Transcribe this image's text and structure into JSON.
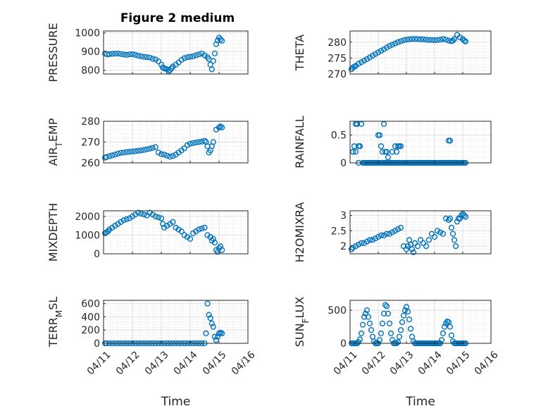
{
  "figure_title": "Figure 2 medium",
  "colors": {
    "marker": "#0072BD",
    "axis": "#262626",
    "grid": "#d9d9d9",
    "background": "#ffffff"
  },
  "chart_data": [
    {
      "type": "scatter",
      "ylabel": {
        "text": "PRESSURE",
        "sub": ""
      },
      "xlabel": "",
      "ylim": [
        780,
        1010
      ],
      "yticks": [
        800,
        900,
        1000
      ],
      "xlim": [
        0,
        5
      ],
      "xticklabels": [
        "04/11",
        "04/12",
        "04/13",
        "04/14",
        "04/15",
        "04/16"
      ],
      "show_xticklabels": false,
      "grid": true,
      "x": [
        0.05,
        0.12,
        0.2,
        0.3,
        0.4,
        0.5,
        0.6,
        0.7,
        0.8,
        0.9,
        1.0,
        1.1,
        1.2,
        1.3,
        1.4,
        1.5,
        1.6,
        1.7,
        1.8,
        1.9,
        2.0,
        2.05,
        2.1,
        2.15,
        2.2,
        2.25,
        2.3,
        2.35,
        2.4,
        2.5,
        2.6,
        2.7,
        2.8,
        2.9,
        3.0,
        3.1,
        3.2,
        3.3,
        3.4,
        3.5,
        3.6,
        3.65,
        3.7,
        3.75,
        3.8,
        3.85,
        3.9,
        3.95,
        4.0,
        4.05,
        4.1
      ],
      "y": [
        890,
        885,
        886,
        888,
        889,
        890,
        887,
        884,
        882,
        885,
        886,
        882,
        878,
        875,
        872,
        870,
        868,
        862,
        858,
        848,
        830,
        815,
        810,
        808,
        805,
        795,
        800,
        810,
        820,
        830,
        842,
        856,
        865,
        870,
        872,
        875,
        880,
        885,
        890,
        880,
        870,
        860,
        830,
        805,
        850,
        890,
        940,
        960,
        975,
        965,
        958
      ]
    },
    {
      "type": "scatter",
      "ylabel": {
        "text": "THETA",
        "sub": ""
      },
      "xlabel": "",
      "ylim": [
        270,
        283.5
      ],
      "yticks": [
        270,
        275,
        280
      ],
      "xlim": [
        0,
        5
      ],
      "xticklabels": [
        "04/11",
        "04/12",
        "04/13",
        "04/14",
        "04/15",
        "04/16"
      ],
      "show_xticklabels": false,
      "grid": true,
      "x": [
        0.05,
        0.1,
        0.15,
        0.2,
        0.3,
        0.4,
        0.5,
        0.6,
        0.7,
        0.8,
        0.9,
        1.0,
        1.1,
        1.2,
        1.3,
        1.4,
        1.5,
        1.6,
        1.7,
        1.8,
        1.9,
        2.0,
        2.1,
        2.2,
        2.3,
        2.4,
        2.5,
        2.6,
        2.7,
        2.8,
        2.9,
        3.0,
        3.1,
        3.2,
        3.3,
        3.4,
        3.5,
        3.6,
        3.65,
        3.7,
        3.8,
        3.9,
        4.0,
        4.05,
        4.1
      ],
      "y": [
        271.5,
        272,
        272.3,
        272.6,
        273.2,
        273.7,
        274.2,
        274.7,
        275.2,
        275.8,
        276.3,
        276.8,
        277.3,
        277.8,
        278.3,
        278.8,
        279.2,
        279.6,
        280,
        280.3,
        280.6,
        280.8,
        280.9,
        281,
        281,
        281,
        280.9,
        280.9,
        280.8,
        280.7,
        280.7,
        280.6,
        280.7,
        280.8,
        281,
        280.8,
        280.5,
        280.3,
        280.5,
        281,
        282.3,
        281.5,
        281,
        280.5,
        280.2
      ]
    },
    {
      "type": "scatter",
      "ylabel": {
        "text": "AIR",
        "sub": "T",
        "after": "EMP"
      },
      "xlabel": "",
      "ylim": [
        260,
        280
      ],
      "yticks": [
        260,
        270,
        280
      ],
      "xlim": [
        0,
        5
      ],
      "xticklabels": [
        "04/11",
        "04/12",
        "04/13",
        "04/14",
        "04/15",
        "04/16"
      ],
      "show_xticklabels": false,
      "grid": true,
      "x": [
        0.05,
        0.1,
        0.2,
        0.3,
        0.4,
        0.5,
        0.6,
        0.7,
        0.8,
        0.9,
        1.0,
        1.1,
        1.2,
        1.3,
        1.4,
        1.5,
        1.6,
        1.7,
        1.8,
        1.9,
        2.0,
        2.1,
        2.2,
        2.3,
        2.4,
        2.5,
        2.6,
        2.7,
        2.8,
        2.9,
        3.0,
        3.1,
        3.2,
        3.3,
        3.4,
        3.5,
        3.55,
        3.6,
        3.65,
        3.7,
        3.75,
        3.8,
        3.9,
        4.0,
        4.05,
        4.1
      ],
      "y": [
        262.5,
        262.8,
        263.2,
        263.6,
        264,
        264.4,
        264.8,
        265,
        265.2,
        265.3,
        265.5,
        265.6,
        265.8,
        266,
        266.2,
        266.5,
        266.8,
        267.2,
        267.6,
        265,
        264.2,
        264,
        263.5,
        263,
        263.3,
        264,
        265,
        266,
        267,
        268.5,
        269.2,
        269.5,
        269.8,
        270,
        270.2,
        270.6,
        270,
        268,
        265,
        266,
        268,
        270,
        276,
        277,
        277.5,
        277
      ]
    },
    {
      "type": "scatter",
      "ylabel": {
        "text": "RAINFALL",
        "sub": ""
      },
      "xlabel": "",
      "ylim": [
        0,
        0.75
      ],
      "yticks": [
        0,
        0.5
      ],
      "xlim": [
        0,
        5
      ],
      "xticklabels": [
        "04/11",
        "04/12",
        "04/13",
        "04/14",
        "04/15",
        "04/16"
      ],
      "show_xticklabels": false,
      "grid": true,
      "x": [
        0.1,
        0.15,
        0.2,
        0.25,
        0.3,
        0.35,
        0.4,
        0.45,
        0.5,
        0.55,
        0.6,
        0.65,
        0.7,
        0.75,
        0.8,
        0.85,
        0.9,
        0.95,
        1.0,
        1.05,
        1.1,
        1.15,
        1.2,
        1.25,
        1.3,
        1.35,
        1.4,
        1.45,
        1.5,
        1.55,
        1.6,
        1.65,
        1.7,
        1.75,
        1.8,
        1.85,
        1.9,
        1.95,
        2.0,
        2.05,
        2.1,
        2.15,
        2.2,
        2.25,
        2.3,
        2.35,
        2.4,
        2.45,
        2.5,
        2.55,
        2.6,
        2.65,
        2.7,
        2.75,
        2.8,
        2.85,
        2.9,
        2.95,
        3.0,
        3.05,
        3.1,
        3.15,
        3.2,
        3.25,
        3.3,
        3.35,
        3.4,
        3.45,
        3.5,
        3.55,
        3.6,
        3.65,
        3.7,
        3.75,
        3.8,
        3.85,
        3.9,
        3.95,
        4.0,
        4.05,
        4.1,
        0.1,
        0.2,
        0.25,
        0.3,
        0.35,
        0.5,
        1.0,
        1.05,
        1.1,
        1.15,
        1.2,
        1.25,
        1.3,
        1.35,
        1.4,
        1.5,
        1.6,
        1.65,
        1.7,
        1.75,
        1.8,
        3.5,
        3.55
      ],
      "y": [
        0.2,
        0.3,
        0.7,
        0.7,
        0,
        0.3,
        0.7,
        0,
        0,
        0,
        0,
        0,
        0,
        0,
        0,
        0,
        0,
        0,
        0,
        0,
        0,
        0,
        0,
        0,
        0,
        0,
        0,
        0,
        0,
        0,
        0,
        0,
        0,
        0,
        0,
        0,
        0,
        0,
        0,
        0,
        0,
        0,
        0,
        0,
        0,
        0,
        0,
        0,
        0,
        0,
        0,
        0,
        0,
        0,
        0,
        0,
        0,
        0,
        0,
        0,
        0,
        0,
        0,
        0,
        0,
        0,
        0,
        0,
        0,
        0,
        0,
        0,
        0,
        0,
        0,
        0,
        0,
        0,
        0,
        0,
        0,
        0.2,
        0.2,
        0.7,
        0.3,
        0.3,
        0,
        0.5,
        0.5,
        0.3,
        0.2,
        0.7,
        0.2,
        0.2,
        0.1,
        0,
        0.2,
        0.3,
        0.2,
        0.3,
        0.3,
        0.3,
        0.4,
        0.4
      ]
    },
    {
      "type": "scatter",
      "ylabel": {
        "text": "MIXDEPTH",
        "sub": ""
      },
      "xlabel": "",
      "ylim": [
        0,
        2300
      ],
      "yticks": [
        0,
        1000,
        2000
      ],
      "xlim": [
        0,
        5
      ],
      "xticklabels": [
        "04/11",
        "04/12",
        "04/13",
        "04/14",
        "04/15",
        "04/16"
      ],
      "show_xticklabels": false,
      "grid": true,
      "x": [
        0.05,
        0.1,
        0.15,
        0.2,
        0.3,
        0.4,
        0.5,
        0.6,
        0.7,
        0.8,
        0.9,
        1.0,
        1.1,
        1.2,
        1.3,
        1.4,
        1.5,
        1.6,
        1.7,
        1.8,
        1.9,
        2.0,
        2.05,
        2.1,
        2.2,
        2.3,
        2.4,
        2.5,
        2.6,
        2.7,
        2.8,
        2.9,
        3.0,
        3.1,
        3.2,
        3.3,
        3.4,
        3.5,
        3.6,
        3.7,
        3.75,
        3.8,
        3.85,
        3.9,
        3.95,
        4.0,
        4.05,
        4.1
      ],
      "y": [
        1100,
        1150,
        1200,
        1300,
        1400,
        1500,
        1600,
        1700,
        1800,
        1850,
        1900,
        2000,
        2100,
        2200,
        2150,
        2100,
        2050,
        2200,
        2100,
        2000,
        1950,
        1900,
        1600,
        1400,
        1500,
        1600,
        1700,
        1400,
        1300,
        1200,
        1000,
        900,
        800,
        1100,
        1200,
        1300,
        1350,
        1400,
        1000,
        900,
        700,
        800,
        600,
        200,
        100,
        300,
        400,
        200
      ]
    },
    {
      "type": "scatter",
      "ylabel": {
        "text": "H2OMIXRA",
        "sub": ""
      },
      "xlabel": "",
      "ylim": [
        1.75,
        3.15
      ],
      "yticks": [
        2,
        2.5,
        3
      ],
      "xlim": [
        0,
        5
      ],
      "xticklabels": [
        "04/11",
        "04/12",
        "04/13",
        "04/14",
        "04/15",
        "04/16"
      ],
      "show_xticklabels": false,
      "grid": true,
      "x": [
        0.05,
        0.1,
        0.2,
        0.3,
        0.4,
        0.5,
        0.6,
        0.7,
        0.8,
        0.9,
        1.0,
        1.1,
        1.2,
        1.3,
        1.4,
        1.5,
        1.6,
        1.7,
        1.8,
        1.9,
        2.0,
        2.05,
        2.1,
        2.15,
        2.2,
        2.25,
        2.3,
        2.4,
        2.5,
        2.6,
        2.7,
        2.8,
        2.9,
        3.0,
        3.1,
        3.2,
        3.3,
        3.4,
        3.5,
        3.55,
        3.6,
        3.65,
        3.7,
        3.75,
        3.8,
        3.85,
        3.9,
        3.95,
        4.0,
        4.05,
        4.1
      ],
      "y": [
        1.9,
        1.95,
        2.0,
        2.05,
        2.1,
        2.1,
        2.15,
        2.2,
        2.2,
        2.25,
        2.3,
        2.35,
        2.35,
        2.4,
        2.4,
        2.45,
        2.5,
        2.55,
        2.6,
        2.0,
        1.9,
        2.0,
        2.2,
        2.05,
        1.9,
        1.8,
        2.1,
        2.0,
        2.2,
        2.1,
        2.0,
        2.2,
        2.4,
        2.3,
        2.5,
        2.45,
        2.4,
        2.9,
        2.85,
        2.9,
        2.6,
        2.4,
        2.2,
        2.0,
        2.8,
        2.9,
        2.9,
        3.0,
        3.05,
        3.0,
        2.95
      ]
    },
    {
      "type": "scatter",
      "ylabel": {
        "text": "TERR",
        "sub": "M",
        "after": "SL"
      },
      "xlabel": "Time",
      "ylim": [
        0,
        650
      ],
      "yticks": [
        0,
        200,
        400,
        600
      ],
      "xlim": [
        0,
        5
      ],
      "xticklabels": [
        "04/11",
        "04/12",
        "04/13",
        "04/14",
        "04/15",
        "04/16"
      ],
      "show_xticklabels": true,
      "grid": true,
      "x": [
        0.05,
        0.1,
        0.2,
        0.3,
        0.4,
        0.5,
        0.6,
        0.7,
        0.8,
        0.9,
        1.0,
        1.1,
        1.2,
        1.3,
        1.4,
        1.5,
        1.6,
        1.7,
        1.8,
        1.9,
        2.0,
        2.1,
        2.2,
        2.3,
        2.4,
        2.5,
        2.6,
        2.7,
        2.8,
        2.9,
        3.0,
        3.1,
        3.2,
        3.3,
        3.4,
        3.5,
        3.55,
        3.6,
        3.65,
        3.7,
        3.75,
        3.8,
        3.85,
        3.9,
        3.95,
        4.0,
        4.05,
        4.1
      ],
      "y": [
        0,
        0,
        0,
        0,
        0,
        0,
        0,
        0,
        0,
        0,
        0,
        0,
        0,
        0,
        0,
        0,
        0,
        0,
        0,
        0,
        0,
        0,
        0,
        0,
        0,
        0,
        0,
        0,
        0,
        0,
        0,
        0,
        0,
        0,
        0,
        0,
        150,
        600,
        430,
        380,
        300,
        250,
        100,
        50,
        100,
        150,
        160,
        150
      ]
    },
    {
      "type": "scatter",
      "ylabel": {
        "text": "SUN",
        "sub": "F",
        "after": "LUX"
      },
      "xlabel": "Time",
      "ylim": [
        0,
        650
      ],
      "yticks": [
        0,
        500
      ],
      "xlim": [
        0,
        5
      ],
      "xticklabels": [
        "04/11",
        "04/12",
        "04/13",
        "04/14",
        "04/15",
        "04/16"
      ],
      "show_xticklabels": true,
      "grid": true,
      "x": [
        0.05,
        0.1,
        0.15,
        0.2,
        0.25,
        0.3,
        0.35,
        0.4,
        0.45,
        0.5,
        0.55,
        0.6,
        0.65,
        0.7,
        0.75,
        0.8,
        0.85,
        0.9,
        0.95,
        1.0,
        1.05,
        1.1,
        1.15,
        1.2,
        1.25,
        1.3,
        1.35,
        1.4,
        1.45,
        1.5,
        1.55,
        1.6,
        1.65,
        1.7,
        1.75,
        1.8,
        1.85,
        1.9,
        1.95,
        2.0,
        2.05,
        2.1,
        2.15,
        2.2,
        2.25,
        2.3,
        2.35,
        2.4,
        2.45,
        2.5,
        2.55,
        2.6,
        2.65,
        2.7,
        2.75,
        2.8,
        2.85,
        2.9,
        2.95,
        3.0,
        3.05,
        3.1,
        3.15,
        3.2,
        3.25,
        3.3,
        3.35,
        3.4,
        3.45,
        3.5,
        3.55,
        3.6,
        3.65,
        3.7,
        3.75,
        3.8,
        3.85,
        3.9,
        3.95,
        4.0,
        4.05,
        4.1
      ],
      "y": [
        0,
        0,
        0,
        0,
        0,
        20,
        60,
        150,
        280,
        400,
        450,
        500,
        400,
        300,
        200,
        100,
        30,
        0,
        0,
        0,
        50,
        150,
        300,
        450,
        580,
        560,
        450,
        300,
        150,
        50,
        0,
        0,
        0,
        20,
        100,
        200,
        320,
        420,
        500,
        550,
        480,
        360,
        220,
        100,
        30,
        0,
        0,
        0,
        0,
        0,
        0,
        0,
        0,
        0,
        0,
        0,
        0,
        0,
        0,
        0,
        0,
        0,
        0,
        0,
        50,
        150,
        250,
        300,
        330,
        320,
        250,
        120,
        30,
        0,
        0,
        0,
        0,
        0,
        0,
        0,
        0,
        0
      ]
    }
  ]
}
